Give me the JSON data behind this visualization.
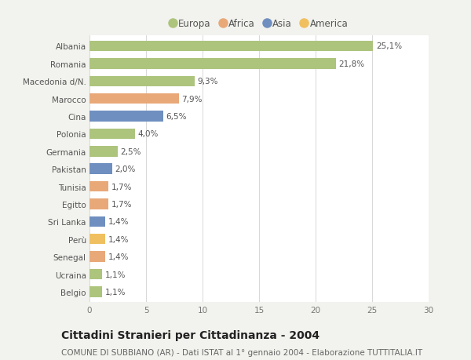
{
  "categories": [
    "Albania",
    "Romania",
    "Macedonia d/N.",
    "Marocco",
    "Cina",
    "Polonia",
    "Germania",
    "Pakistan",
    "Tunisia",
    "Egitto",
    "Sri Lanka",
    "Perù",
    "Senegal",
    "Ucraina",
    "Belgio"
  ],
  "values": [
    25.1,
    21.8,
    9.3,
    7.9,
    6.5,
    4.0,
    2.5,
    2.0,
    1.7,
    1.7,
    1.4,
    1.4,
    1.4,
    1.1,
    1.1
  ],
  "continents": [
    "Europa",
    "Europa",
    "Europa",
    "Africa",
    "Asia",
    "Europa",
    "Europa",
    "Asia",
    "Africa",
    "Africa",
    "Asia",
    "America",
    "Africa",
    "Europa",
    "Europa"
  ],
  "labels": [
    "25,1%",
    "21,8%",
    "9,3%",
    "7,9%",
    "6,5%",
    "4,0%",
    "2,5%",
    "2,0%",
    "1,7%",
    "1,7%",
    "1,4%",
    "1,4%",
    "1,4%",
    "1,1%",
    "1,1%"
  ],
  "continent_colors": {
    "Europa": "#adc47d",
    "Africa": "#e8a878",
    "Asia": "#6e8fbf",
    "America": "#f0c060"
  },
  "legend_order": [
    "Europa",
    "Africa",
    "Asia",
    "America"
  ],
  "xlim": [
    0,
    30
  ],
  "xticks": [
    0,
    5,
    10,
    15,
    20,
    25,
    30
  ],
  "title": "Cittadini Stranieri per Cittadinanza - 2004",
  "subtitle": "COMUNE DI SUBBIANO (AR) - Dati ISTAT al 1° gennaio 2004 - Elaborazione TUTTITALIA.IT",
  "background_color": "#f2f2ee",
  "plot_bg_color": "#ffffff",
  "grid_color": "#d8d8d8",
  "bar_height": 0.6,
  "label_fontsize": 7.5,
  "tick_fontsize": 7.5,
  "title_fontsize": 10,
  "subtitle_fontsize": 7.5
}
